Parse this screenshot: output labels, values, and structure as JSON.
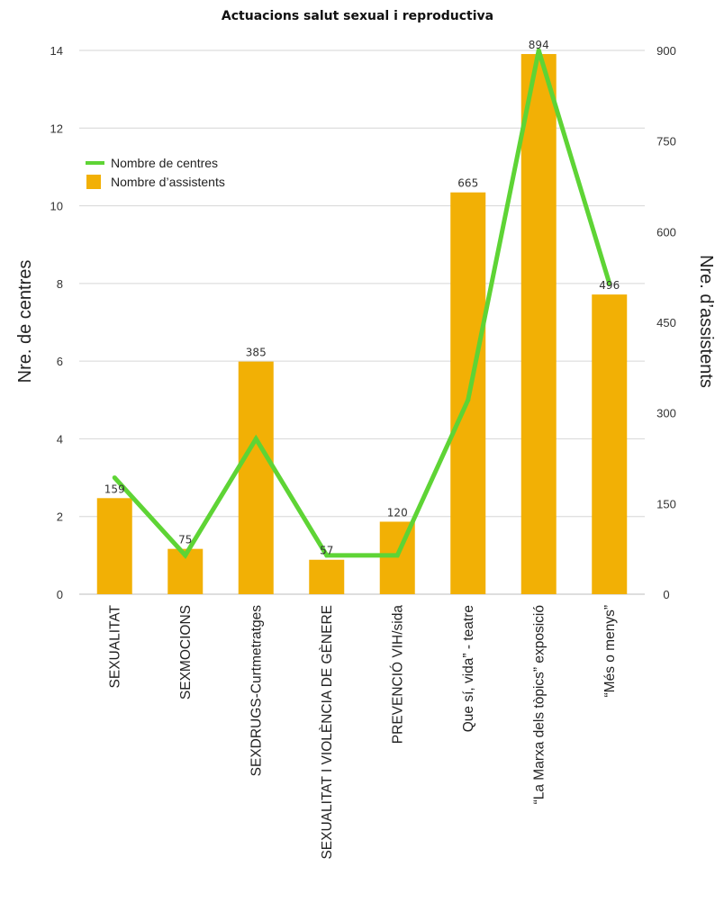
{
  "chart_data": {
    "type": "bar",
    "title": "Actuacions salut sexual i reproductiva",
    "categories": [
      "SEXUALITAT",
      "SEXMOCIONS",
      "SEXDRUGS-Curtmetratges",
      "SEXUALITAT I VIOLÈNCIA DE GÈNERE",
      "PREVENCIÓ VIH/sida",
      "Que sí, vida” - teatre",
      "“La Marxa dels tòpics” exposició",
      "“Més o menys”"
    ],
    "series": [
      {
        "name": "Nombre d’assistents",
        "type": "bar",
        "axis": "right",
        "color": "#F2B005",
        "values": [
          159,
          75,
          385,
          57,
          120,
          665,
          894,
          496
        ],
        "data_labels": [
          "159",
          "75",
          "385",
          "57",
          "120",
          "665",
          "894",
          "496"
        ]
      },
      {
        "name": "Nombre de centres",
        "type": "line",
        "axis": "left",
        "color": "#5ED435",
        "values": [
          3,
          1,
          4,
          1,
          1,
          5,
          14,
          8
        ]
      }
    ],
    "ylabel_left": "Nre. de centres",
    "ylabel_right": "Nre. d’assistents",
    "ylim_left": [
      0,
      14
    ],
    "yticks_left": [
      "0",
      "2",
      "4",
      "6",
      "8",
      "10",
      "12",
      "14"
    ],
    "ylim_right": [
      0,
      900
    ],
    "yticks_right": [
      "0",
      "150",
      "300",
      "450",
      "600",
      "750",
      "900"
    ],
    "grid": true,
    "legend_position": "top-left"
  }
}
